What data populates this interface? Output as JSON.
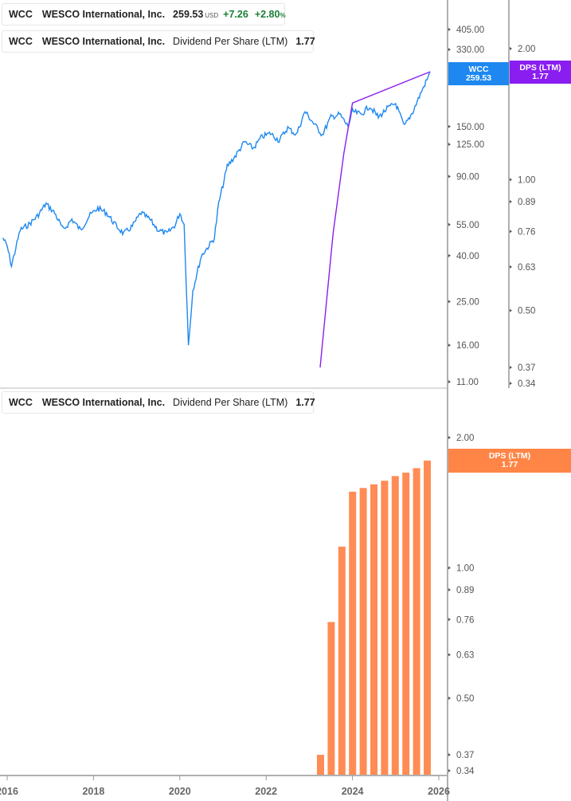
{
  "upper_panel": {
    "legend_price": {
      "ticker": "WCC",
      "company": "WESCO International, Inc.",
      "price": "259.53",
      "currency": "USD",
      "change": "+7.26",
      "change_pct": "+2.80",
      "pct_sign": "%",
      "color": "#1e88f0"
    },
    "legend_dps": {
      "ticker": "WCC",
      "company": "WESCO International, Inc.",
      "metric": "Dividend Per Share (LTM)",
      "value": "1.77",
      "color": "#8a1ef0"
    },
    "price_tag": {
      "line1": "WCC",
      "line2": "259.53",
      "color": "#1e88f0"
    },
    "dps_tag": {
      "line1": "DPS (LTM)",
      "line2": "1.77",
      "color": "#8a1ef0"
    }
  },
  "lower_panel": {
    "legend_dps": {
      "ticker": "WCC",
      "company": "WESCO International, Inc.",
      "metric": "Dividend Per Share (LTM)",
      "value": "1.77",
      "color": "#ff7f3f"
    },
    "dps_tag": {
      "line1": "DPS (LTM)",
      "line2": "1.77",
      "color": "#ff7f3f"
    }
  },
  "chart_data": [
    {
      "type": "line",
      "title": "WCC WESCO International, Inc. price",
      "yscale": "log",
      "y_ticks": [
        "405.00",
        "330.00",
        "150.00",
        "125.00",
        "90.00",
        "55.00",
        "40.00",
        "25.00",
        "16.00",
        "11.00"
      ],
      "x_ticks": [
        "2016",
        "2018",
        "2020",
        "2022",
        "2024",
        "2026"
      ],
      "x": [
        2015.9,
        2016.0,
        2016.1,
        2016.3,
        2016.5,
        2016.7,
        2016.9,
        2017.1,
        2017.3,
        2017.5,
        2017.7,
        2017.9,
        2018.1,
        2018.3,
        2018.5,
        2018.7,
        2018.9,
        2019.1,
        2019.3,
        2019.5,
        2019.7,
        2019.9,
        2020.0,
        2020.1,
        2020.2,
        2020.3,
        2020.5,
        2020.7,
        2020.8,
        2020.9,
        2021.1,
        2021.3,
        2021.5,
        2021.7,
        2021.9,
        2022.1,
        2022.3,
        2022.5,
        2022.7,
        2022.9,
        2023.1,
        2023.3,
        2023.5,
        2023.7,
        2023.9,
        2024.0,
        2024.2,
        2024.4,
        2024.6,
        2024.8,
        2025.0,
        2025.2,
        2025.4,
        2025.6,
        2025.8
      ],
      "values": [
        48,
        44,
        36,
        52,
        55,
        60,
        68,
        62,
        52,
        58,
        52,
        60,
        65,
        62,
        55,
        50,
        54,
        62,
        58,
        52,
        50,
        55,
        62,
        55,
        16,
        28,
        40,
        45,
        48,
        68,
        100,
        112,
        128,
        120,
        135,
        140,
        130,
        148,
        138,
        175,
        155,
        138,
        165,
        170,
        150,
        175,
        170,
        185,
        165,
        180,
        190,
        150,
        175,
        215,
        259.53
      ],
      "ylim": [
        11,
        405
      ]
    },
    {
      "type": "line",
      "title": "WCC Dividend Per Share (LTM) — upper panel overlay",
      "yscale": "log",
      "y_ticks": [
        "2.00",
        "1.00",
        "0.89",
        "0.76",
        "0.63",
        "0.50",
        "0.37",
        "0.34"
      ],
      "x": [
        2023.25,
        2023.55,
        2023.8,
        2024.0,
        2025.8
      ],
      "values": [
        0.37,
        0.75,
        1.15,
        1.5,
        1.77
      ],
      "ylim": [
        0.34,
        2.0
      ]
    },
    {
      "type": "bar",
      "title": "WCC Dividend Per Share (LTM)",
      "yscale": "log",
      "y_ticks": [
        "2.00",
        "1.00",
        "0.89",
        "0.76",
        "0.63",
        "0.50",
        "0.37",
        "0.34"
      ],
      "x_ticks": [
        "2016",
        "2018",
        "2020",
        "2022",
        "2024",
        "2026"
      ],
      "categories": [
        "2023Q2",
        "2023Q3",
        "2023Q4",
        "2024Q1",
        "2024Q2",
        "2024Q3",
        "2024Q4",
        "2025Q1",
        "2025Q2",
        "2025Q3",
        "2025Q4"
      ],
      "values": [
        0.37,
        0.75,
        1.12,
        1.5,
        1.53,
        1.56,
        1.59,
        1.63,
        1.66,
        1.7,
        1.77
      ],
      "ylim": [
        0.34,
        2.0
      ]
    }
  ]
}
